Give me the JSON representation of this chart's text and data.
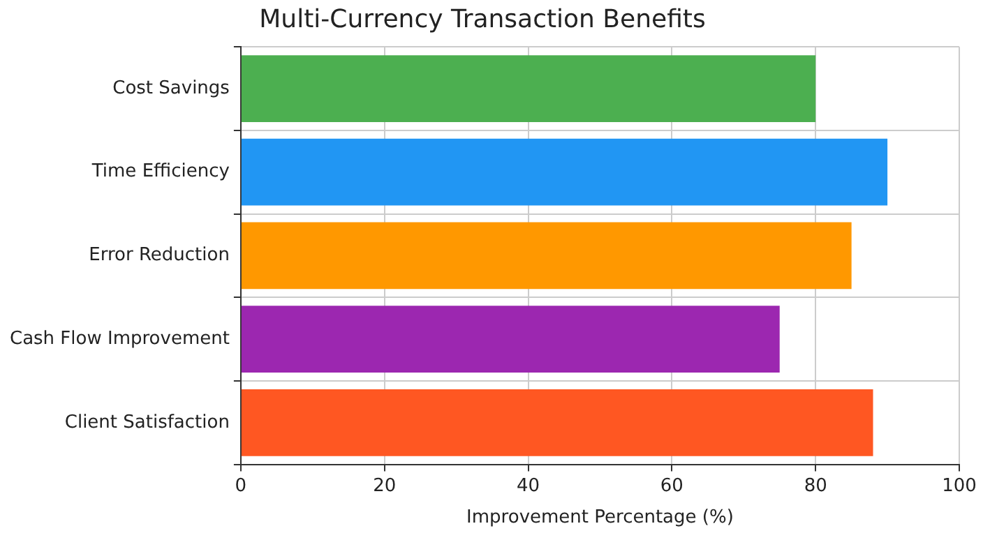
{
  "chart_data": {
    "type": "bar",
    "orientation": "horizontal",
    "title": "Multi-Currency Transaction Benefits",
    "xlabel": "Improvement Percentage (%)",
    "categories": [
      "Cost Savings",
      "Time Efficiency",
      "Error Reduction",
      "Cash Flow Improvement",
      "Client Satisfaction"
    ],
    "values": [
      80,
      90,
      85,
      75,
      88
    ],
    "colors": [
      "#4caf50",
      "#2196f3",
      "#ff9800",
      "#9c27b0",
      "#ff5722"
    ],
    "xlim": [
      0,
      100
    ],
    "xticks": [
      0,
      20,
      40,
      60,
      80,
      100
    ],
    "grid": true,
    "legend": false
  }
}
